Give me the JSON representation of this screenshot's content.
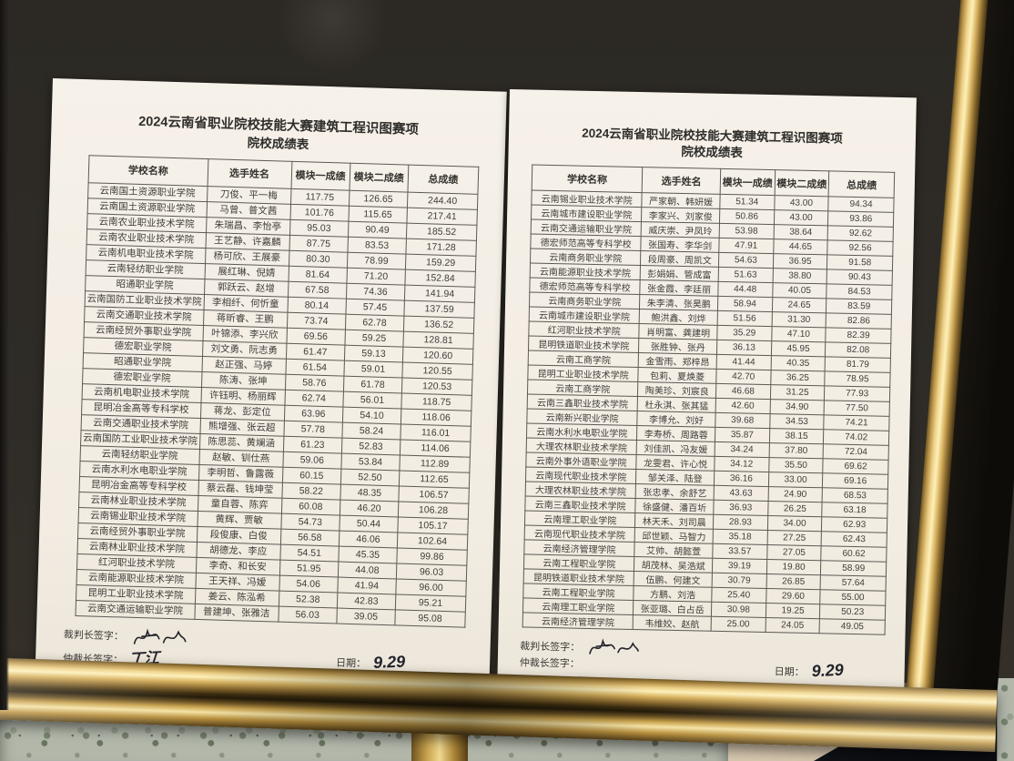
{
  "colors": {
    "board": "#2e2b26",
    "frame_gold": "#c9a44e",
    "paper": "#f4efe7",
    "floor_granite": "#b2b7aa",
    "floor_beige": "#d8c8b0",
    "leg_black": "#101218",
    "leg_logo_blue": "#58a8cf"
  },
  "leg": {
    "logo": "vt"
  },
  "pages": [
    {
      "title_line1": "2024云南省职业院校技能大赛建筑工程识图赛项",
      "title_line2": "院校成绩表",
      "columns": [
        "学校名称",
        "选手姓名",
        "模块一成绩",
        "模块二成绩",
        "总成绩"
      ],
      "rows": [
        [
          "云南国土资源职业学院",
          "刀俊、平一梅",
          "117.75",
          "126.65",
          "244.40"
        ],
        [
          "云南国土资源职业学院",
          "马曾、普文茜",
          "101.76",
          "115.65",
          "217.41"
        ],
        [
          "云南农业职业技术学院",
          "朱瑞昌、李怡亭",
          "95.03",
          "90.49",
          "185.52"
        ],
        [
          "云南农业职业技术学院",
          "王艺静、许嘉麟",
          "87.75",
          "83.53",
          "171.28"
        ],
        [
          "云南机电职业技术学院",
          "杨可欣、王展豪",
          "80.30",
          "78.99",
          "159.29"
        ],
        [
          "云南轻纺职业学院",
          "展红琳、倪婧",
          "81.64",
          "71.20",
          "152.84"
        ],
        [
          "昭通职业学院",
          "郭跃云、赵增",
          "67.58",
          "74.36",
          "141.94"
        ],
        [
          "云南国防工业职业技术学院",
          "李相纤、何忻童",
          "80.14",
          "57.45",
          "137.59"
        ],
        [
          "云南交通职业技术学院",
          "蒋昕睿、王鹏",
          "73.74",
          "62.78",
          "136.52"
        ],
        [
          "云南经贸外事职业学院",
          "叶锦添、李兴欣",
          "69.56",
          "59.25",
          "128.81"
        ],
        [
          "德宏职业学院",
          "刘文勇、阮志勇",
          "61.47",
          "59.13",
          "120.60"
        ],
        [
          "昭通职业学院",
          "赵正强、马婷",
          "61.54",
          "59.01",
          "120.55"
        ],
        [
          "德宏职业学院",
          "陈涛、张坤",
          "58.76",
          "61.78",
          "120.53"
        ],
        [
          "云南机电职业技术学院",
          "许钰明、杨丽辉",
          "62.74",
          "56.01",
          "118.75"
        ],
        [
          "昆明冶金高等专科学校",
          "蒋龙、彭定位",
          "63.96",
          "54.10",
          "118.06"
        ],
        [
          "云南交通职业技术学院",
          "熊增强、张云超",
          "57.78",
          "58.24",
          "116.01"
        ],
        [
          "云南国防工业职业技术学院",
          "陈思蕊、黄斓涵",
          "61.23",
          "52.83",
          "114.06"
        ],
        [
          "云南轻纺职业学院",
          "赵敏、钏仕燕",
          "59.06",
          "53.84",
          "112.89"
        ],
        [
          "云南水利水电职业学院",
          "李明哲、鲁露薇",
          "60.15",
          "52.50",
          "112.65"
        ],
        [
          "昆明冶金高等专科学校",
          "蔡云磊、钱坤莹",
          "58.22",
          "48.35",
          "106.57"
        ],
        [
          "云南林业职业技术学院",
          "童自蓉、陈弈",
          "60.08",
          "46.20",
          "106.28"
        ],
        [
          "云南锡业职业技术学院",
          "黄辉、贾敏",
          "54.73",
          "50.44",
          "105.17"
        ],
        [
          "云南经贸外事职业学院",
          "段俊康、白俊",
          "56.58",
          "46.06",
          "102.64"
        ],
        [
          "云南林业职业技术学院",
          "胡德龙、李应",
          "54.51",
          "45.35",
          "99.86"
        ],
        [
          "红河职业技术学院",
          "李奇、和长安",
          "51.95",
          "44.08",
          "96.03"
        ],
        [
          "云南能源职业技术学院",
          "王天祥、冯嫒",
          "54.06",
          "41.94",
          "96.00"
        ],
        [
          "昆明工业职业技术学院",
          "姜云、陈泓希",
          "52.38",
          "42.83",
          "95.21"
        ],
        [
          "云南交通运输职业学院",
          "普建坤、张雅洁",
          "56.03",
          "39.05",
          "95.08"
        ]
      ],
      "footer": {
        "judge_label": "裁判长签字：",
        "arbiter_label": "仲裁长签字：",
        "arbiter_signature": "丁江",
        "date_label": "日期：",
        "date_value": "9.29"
      }
    },
    {
      "title_line1": "2024云南省职业院校技能大赛建筑工程识图赛项",
      "title_line2": "院校成绩表",
      "columns": [
        "学校名称",
        "选手姓名",
        "模块一成绩",
        "模块二成绩",
        "总成绩"
      ],
      "rows": [
        [
          "云南锡业职业技术学院",
          "严家朝、韩妍媛",
          "51.34",
          "43.00",
          "94.34"
        ],
        [
          "云南城市建设职业学院",
          "李家兴、刘家俊",
          "50.86",
          "43.00",
          "93.86"
        ],
        [
          "云南交通运输职业学院",
          "威庆崇、尹凤玲",
          "53.98",
          "38.64",
          "92.62"
        ],
        [
          "德宏师范高等专科学校",
          "张国寿、李华剑",
          "47.91",
          "44.65",
          "92.56"
        ],
        [
          "云南商务职业学院",
          "段周豪、周凯文",
          "54.63",
          "36.95",
          "91.58"
        ],
        [
          "云南能源职业技术学院",
          "彭娟娟、管成富",
          "51.63",
          "38.80",
          "90.43"
        ],
        [
          "德宏师范高等专科学校",
          "张金霞、李廷丽",
          "44.48",
          "40.05",
          "84.53"
        ],
        [
          "云南商务职业学院",
          "朱李清、张昊鹏",
          "58.94",
          "24.65",
          "83.59"
        ],
        [
          "云南城市建设职业学院",
          "鲍洪鑫、刘烨",
          "51.56",
          "31.30",
          "82.86"
        ],
        [
          "红河职业技术学院",
          "肖明富、龚建明",
          "35.29",
          "47.10",
          "82.39"
        ],
        [
          "昆明铁道职业技术学院",
          "张胜钟、张丹",
          "36.13",
          "45.95",
          "82.08"
        ],
        [
          "云南工商学院",
          "金雪雨、郑梓昂",
          "41.44",
          "40.35",
          "81.79"
        ],
        [
          "昆明工业职业技术学院",
          "包莉、夏焕菱",
          "42.70",
          "36.25",
          "78.95"
        ],
        [
          "云南工商学院",
          "陶美珍、刘宸良",
          "46.68",
          "31.25",
          "77.93"
        ],
        [
          "云南三鑫职业技术学院",
          "杜永淇、张其猛",
          "42.60",
          "34.90",
          "77.50"
        ],
        [
          "云南新兴职业学院",
          "李博允、刘好",
          "39.68",
          "34.53",
          "74.21"
        ],
        [
          "云南水利水电职业学院",
          "李寿桥、周路蓉",
          "35.87",
          "38.15",
          "74.02"
        ],
        [
          "大理农林职业技术学院",
          "刘佳凯、冯友媛",
          "34.24",
          "37.80",
          "72.04"
        ],
        [
          "云南外事外语职业学院",
          "龙雯君、许心悦",
          "34.12",
          "35.50",
          "69.62"
        ],
        [
          "云南现代职业技术学院",
          "邹关泽、陆登",
          "36.16",
          "33.00",
          "69.16"
        ],
        [
          "大理农林职业技术学院",
          "张忠孝、余舒艺",
          "43.63",
          "24.90",
          "68.53"
        ],
        [
          "云南三鑫职业技术学院",
          "徐盛健、潘百圻",
          "36.93",
          "26.25",
          "63.18"
        ],
        [
          "云南理工职业学院",
          "林天禾、刘司晨",
          "28.93",
          "34.00",
          "62.93"
        ],
        [
          "云南现代职业技术学院",
          "邱世颖、马智力",
          "35.18",
          "27.25",
          "62.43"
        ],
        [
          "云南经济管理学院",
          "艾帅、胡懿萱",
          "33.57",
          "27.05",
          "60.62"
        ],
        [
          "云南工程职业学院",
          "胡茂林、吴浩斌",
          "39.19",
          "19.80",
          "58.99"
        ],
        [
          "昆明铁道职业技术学院",
          "伍鹏、何建文",
          "30.79",
          "26.85",
          "57.64"
        ],
        [
          "云南工程职业学院",
          "方鹏、刘浩",
          "25.40",
          "29.60",
          "55.00"
        ],
        [
          "云南理工职业学院",
          "张亚璐、白占岳",
          "30.98",
          "19.25",
          "50.23"
        ],
        [
          "云南经济管理学院",
          "韦维姣、赵航",
          "25.00",
          "24.05",
          "49.05"
        ]
      ],
      "footer": {
        "judge_label": "裁判长签字：",
        "arbiter_label": "仲裁长签字：",
        "date_label": "日期：",
        "date_value": "9.29"
      }
    }
  ]
}
